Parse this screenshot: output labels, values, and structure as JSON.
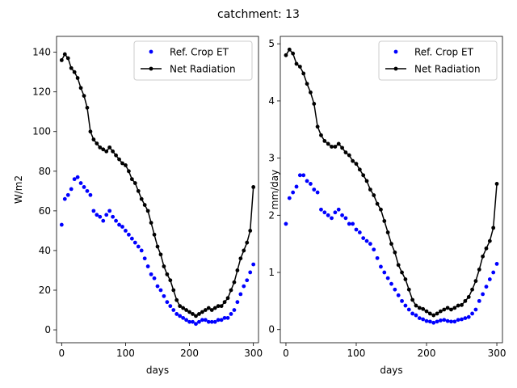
{
  "figure": {
    "suptitle": "catchment: 13"
  },
  "colors": {
    "ref_crop_et": "#0000ff",
    "net_radiation": "#000000",
    "axes": "#000000",
    "background": "#ffffff"
  },
  "chart_data": [
    {
      "type": "scatter",
      "xlabel": "days",
      "ylabel": "W/m2",
      "xlim": [
        -8,
        308
      ],
      "ylim": [
        -6.5,
        148
      ],
      "xticks": [
        0,
        100,
        200,
        300
      ],
      "yticks": [
        0,
        20,
        40,
        60,
        80,
        100,
        120,
        140
      ],
      "legend": {
        "position": "top-right",
        "entries": [
          "Ref. Crop ET",
          "Net Radiation"
        ]
      },
      "series": [
        {
          "name": "Ref. Crop ET",
          "style": "markers",
          "x": [
            0,
            5,
            10,
            15,
            20,
            25,
            30,
            35,
            40,
            45,
            50,
            55,
            60,
            65,
            70,
            75,
            80,
            85,
            90,
            95,
            100,
            105,
            110,
            115,
            120,
            125,
            130,
            135,
            140,
            145,
            150,
            155,
            160,
            165,
            170,
            175,
            180,
            185,
            190,
            195,
            200,
            205,
            210,
            215,
            220,
            225,
            230,
            235,
            240,
            245,
            250,
            255,
            260,
            265,
            270,
            275,
            280,
            285,
            290,
            295,
            300
          ],
          "y": [
            53,
            66,
            68,
            71,
            76,
            77,
            74,
            72,
            70,
            68,
            60,
            58,
            57,
            55,
            58,
            60,
            57,
            55,
            53,
            52,
            50,
            48,
            46,
            44,
            42,
            40,
            36,
            32,
            28,
            26,
            22,
            20,
            17,
            14,
            12,
            10,
            8,
            7,
            6,
            5,
            4,
            4,
            3,
            4,
            5,
            5,
            4,
            4,
            4,
            5,
            5,
            6,
            6,
            8,
            10,
            14,
            18,
            22,
            25,
            29,
            33
          ]
        },
        {
          "name": "Net Radiation",
          "style": "line-markers",
          "x": [
            0,
            5,
            10,
            15,
            20,
            25,
            30,
            35,
            40,
            45,
            50,
            55,
            60,
            65,
            70,
            75,
            80,
            85,
            90,
            95,
            100,
            105,
            110,
            115,
            120,
            125,
            130,
            135,
            140,
            145,
            150,
            155,
            160,
            165,
            170,
            175,
            180,
            185,
            190,
            195,
            200,
            205,
            210,
            215,
            220,
            225,
            230,
            235,
            240,
            245,
            250,
            255,
            260,
            265,
            270,
            275,
            280,
            285,
            290,
            295,
            300
          ],
          "y": [
            136,
            139,
            137,
            132,
            130,
            127,
            122,
            118,
            112,
            100,
            96,
            94,
            92,
            91,
            90,
            92,
            90,
            88,
            86,
            84,
            83,
            80,
            76,
            74,
            70,
            66,
            63,
            60,
            54,
            48,
            42,
            38,
            32,
            28,
            25,
            20,
            15,
            12,
            11,
            10,
            9,
            8,
            7,
            8,
            9,
            10,
            11,
            10,
            11,
            12,
            12,
            14,
            16,
            20,
            24,
            30,
            36,
            40,
            44,
            50,
            72
          ]
        }
      ]
    },
    {
      "type": "scatter",
      "xlabel": "days",
      "ylabel": "mm/day",
      "xlim": [
        -8,
        308
      ],
      "ylim": [
        -0.23,
        5.13
      ],
      "xticks": [
        0,
        100,
        200,
        300
      ],
      "yticks": [
        0,
        1,
        2,
        3,
        4,
        5
      ],
      "legend": {
        "position": "top-right",
        "entries": [
          "Ref. Crop ET",
          "Net Radiation"
        ]
      },
      "series": [
        {
          "name": "Ref. Crop ET",
          "style": "markers",
          "x": [
            0,
            5,
            10,
            15,
            20,
            25,
            30,
            35,
            40,
            45,
            50,
            55,
            60,
            65,
            70,
            75,
            80,
            85,
            90,
            95,
            100,
            105,
            110,
            115,
            120,
            125,
            130,
            135,
            140,
            145,
            150,
            155,
            160,
            165,
            170,
            175,
            180,
            185,
            190,
            195,
            200,
            205,
            210,
            215,
            220,
            225,
            230,
            235,
            240,
            245,
            250,
            255,
            260,
            265,
            270,
            275,
            280,
            285,
            290,
            295,
            300
          ],
          "y": [
            1.85,
            2.3,
            2.4,
            2.5,
            2.7,
            2.7,
            2.6,
            2.55,
            2.45,
            2.4,
            2.1,
            2.05,
            2.0,
            1.95,
            2.05,
            2.1,
            2.0,
            1.95,
            1.85,
            1.85,
            1.75,
            1.7,
            1.6,
            1.55,
            1.5,
            1.4,
            1.25,
            1.1,
            1.0,
            0.9,
            0.8,
            0.7,
            0.6,
            0.5,
            0.42,
            0.35,
            0.28,
            0.25,
            0.2,
            0.18,
            0.15,
            0.14,
            0.12,
            0.14,
            0.16,
            0.17,
            0.15,
            0.14,
            0.14,
            0.17,
            0.18,
            0.2,
            0.22,
            0.28,
            0.35,
            0.5,
            0.62,
            0.75,
            0.88,
            1.0,
            1.15
          ]
        },
        {
          "name": "Net Radiation",
          "style": "line-markers",
          "x": [
            0,
            5,
            10,
            15,
            20,
            25,
            30,
            35,
            40,
            45,
            50,
            55,
            60,
            65,
            70,
            75,
            80,
            85,
            90,
            95,
            100,
            105,
            110,
            115,
            120,
            125,
            130,
            135,
            140,
            145,
            150,
            155,
            160,
            165,
            170,
            175,
            180,
            185,
            190,
            195,
            200,
            205,
            210,
            215,
            220,
            225,
            230,
            235,
            240,
            245,
            250,
            255,
            260,
            265,
            270,
            275,
            280,
            285,
            290,
            295,
            300
          ],
          "y": [
            4.8,
            4.9,
            4.83,
            4.65,
            4.6,
            4.48,
            4.3,
            4.15,
            3.95,
            3.55,
            3.4,
            3.3,
            3.25,
            3.2,
            3.2,
            3.25,
            3.18,
            3.1,
            3.05,
            2.95,
            2.9,
            2.8,
            2.7,
            2.6,
            2.45,
            2.35,
            2.2,
            2.1,
            1.9,
            1.7,
            1.5,
            1.35,
            1.13,
            1.0,
            0.88,
            0.7,
            0.52,
            0.42,
            0.38,
            0.36,
            0.32,
            0.28,
            0.25,
            0.28,
            0.32,
            0.35,
            0.38,
            0.35,
            0.38,
            0.42,
            0.43,
            0.5,
            0.57,
            0.7,
            0.85,
            1.05,
            1.28,
            1.42,
            1.55,
            1.78,
            2.55
          ]
        }
      ]
    }
  ]
}
